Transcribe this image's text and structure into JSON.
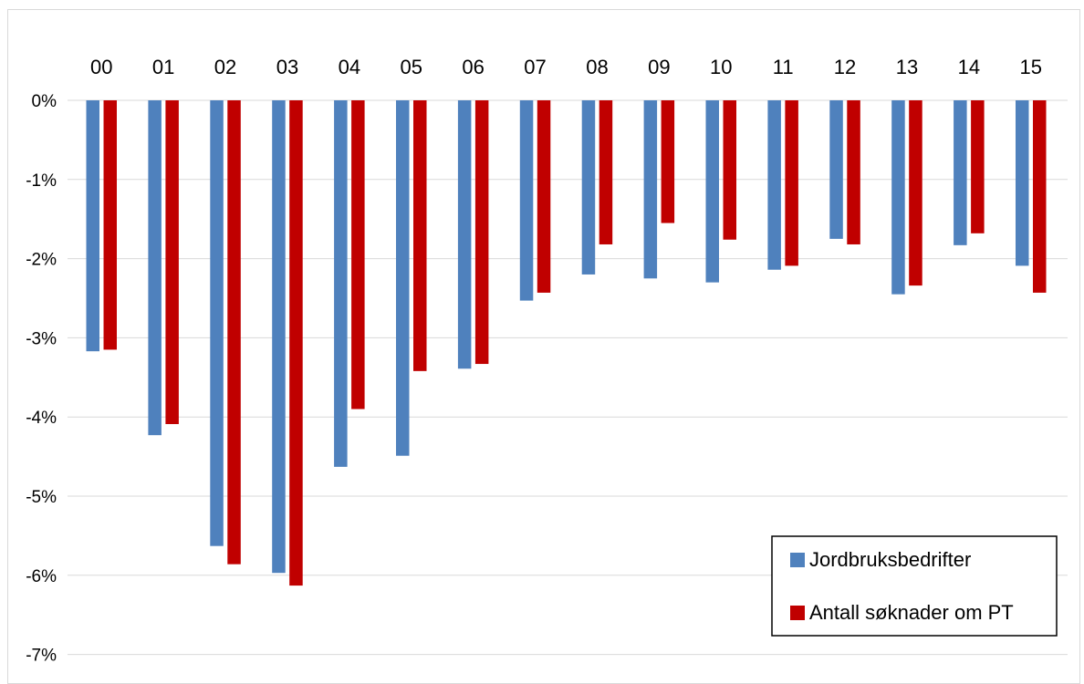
{
  "chart_data": {
    "type": "bar",
    "categories": [
      "00",
      "01",
      "02",
      "03",
      "04",
      "05",
      "06",
      "07",
      "08",
      "09",
      "10",
      "11",
      "12",
      "13",
      "14",
      "15"
    ],
    "series": [
      {
        "name": "Jordbruksbedrifter",
        "color": "#4f81bd",
        "values": [
          -3.17,
          -4.23,
          -5.63,
          -5.97,
          -4.63,
          -4.49,
          -3.39,
          -2.53,
          -2.2,
          -2.25,
          -2.3,
          -2.14,
          -1.75,
          -2.45,
          -1.83,
          -2.09
        ]
      },
      {
        "name": "Antall søknader om PT",
        "color": "#c00000",
        "values": [
          -3.15,
          -4.09,
          -5.86,
          -6.13,
          -3.9,
          -3.42,
          -3.33,
          -2.43,
          -1.82,
          -1.55,
          -1.76,
          -2.09,
          -1.82,
          -2.34,
          -1.68,
          -2.43
        ]
      }
    ],
    "y_ticks": [
      "0%",
      "-1%",
      "-2%",
      "-3%",
      "-4%",
      "-5%",
      "-6%",
      "-7%"
    ],
    "ylim": [
      -7,
      0
    ],
    "grid": true,
    "legend_position": "bottom-right",
    "title": "",
    "xlabel": "",
    "ylabel": ""
  }
}
